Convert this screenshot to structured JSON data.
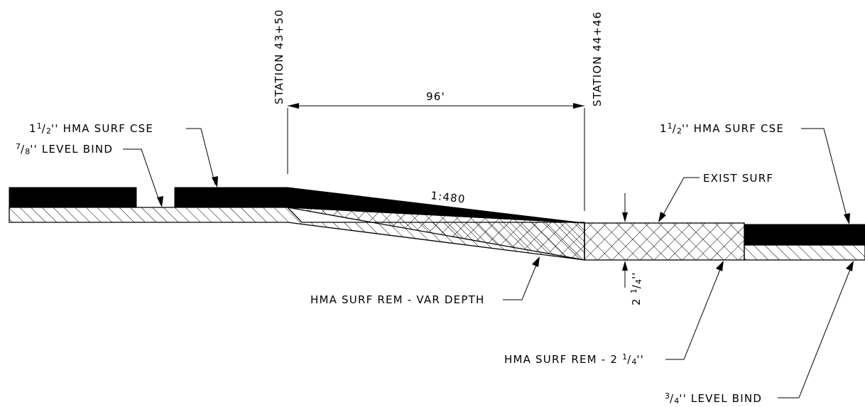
{
  "drawing": {
    "stations": {
      "left": "STATION 43+50",
      "right": "STATION 44+46"
    },
    "dimension": "96'",
    "slope": "1:480",
    "labels": {
      "surf_cse_left": {
        "whole": "1",
        "num": "1",
        "den": "2",
        "text": "'' HMA SURF CSE"
      },
      "level_bind_left": {
        "num": "7",
        "den": "8",
        "text": "'' LEVEL BIND"
      },
      "surf_cse_right": {
        "whole": "1",
        "num": "1",
        "den": "2",
        "text": "'' HMA SURF CSE"
      },
      "exist_surf": "EXIST SURF",
      "rem_var_depth": "HMA SURF REM - VAR DEPTH",
      "rem_depth": {
        "prefix": "HMA SURF REM - 2 ",
        "num": "1",
        "den": "4",
        "suffix": "''"
      },
      "level_bind_right": {
        "num": "3",
        "den": "4",
        "text": "'' LEVEL BIND"
      },
      "vert_dim": {
        "whole": "2",
        "num": "1",
        "den": "4",
        "suffix": "''"
      }
    }
  }
}
